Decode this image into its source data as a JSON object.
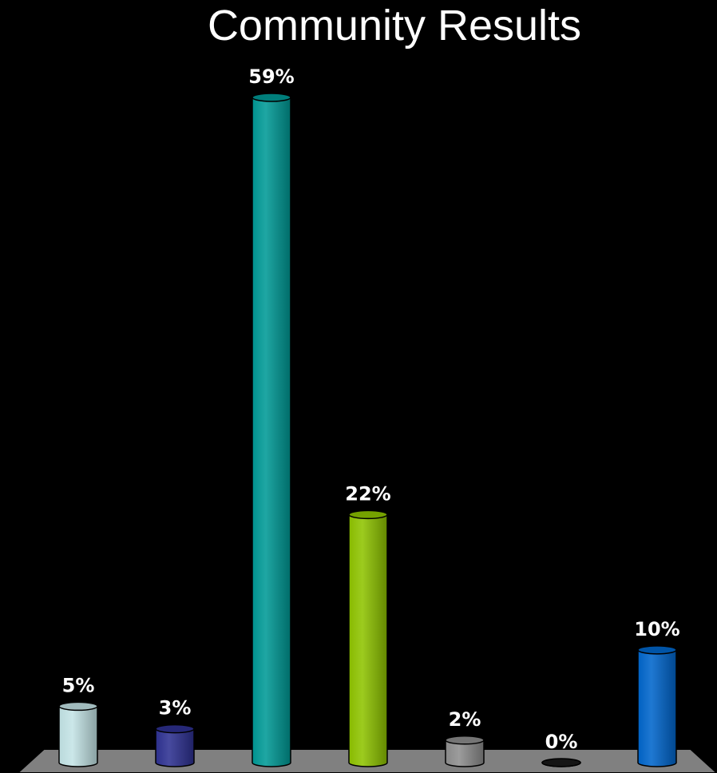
{
  "chart_data": {
    "type": "bar",
    "title": "Community Results",
    "xlabel": "",
    "ylabel": "",
    "ylim": [
      0,
      59
    ],
    "categories": [
      "",
      "",
      "",
      "",
      "",
      "",
      ""
    ],
    "values": [
      5,
      3,
      59,
      22,
      2,
      0,
      10
    ],
    "data_labels": [
      "5%",
      "3%",
      "59%",
      "22%",
      "2%",
      "0%",
      "10%"
    ],
    "colors": [
      "#c4e4e6",
      "#2e3192",
      "#009a96",
      "#8fc400",
      "#8f8f8f",
      "#1a1a1a",
      "#0066cc"
    ],
    "grid": false,
    "legend": "none",
    "style": "3d-cylinder"
  }
}
